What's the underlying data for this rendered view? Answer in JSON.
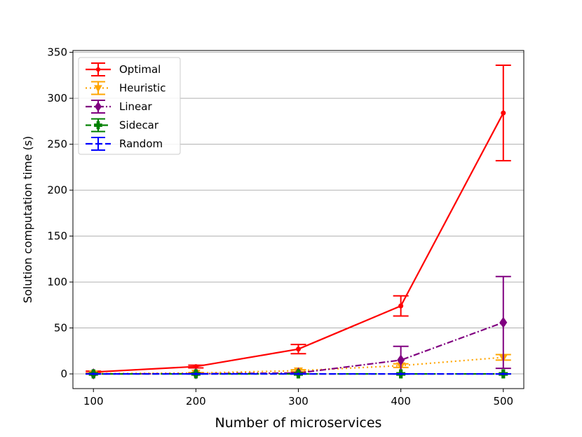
{
  "chart_data": {
    "type": "line",
    "xlabel": "Number of microservices",
    "ylabel": "Solution computation time (s)",
    "x": [
      100,
      200,
      300,
      400,
      500
    ],
    "xlim": [
      80,
      520
    ],
    "ylim": [
      -16,
      352
    ],
    "xticks": [
      100,
      200,
      300,
      400,
      500
    ],
    "yticks": [
      0,
      50,
      100,
      150,
      200,
      250,
      300,
      350
    ],
    "grid": "horizontal",
    "legend_position": "top-left",
    "series": [
      {
        "name": "Optimal",
        "color": "#ff0000",
        "dash": "solid",
        "marker": "dot",
        "values": [
          2,
          8,
          27,
          74,
          284
        ],
        "errors": [
          1,
          1.5,
          5,
          11,
          52
        ]
      },
      {
        "name": "Heuristic",
        "color": "#ffa500",
        "dash": "dotted",
        "marker": "triangle-down",
        "values": [
          0.3,
          1,
          3.5,
          9,
          18
        ],
        "errors": [
          0.2,
          0.5,
          1,
          2,
          3
        ]
      },
      {
        "name": "Linear",
        "color": "#800080",
        "dash": "dashdot",
        "marker": "diamond",
        "values": [
          0,
          0.2,
          1,
          15,
          56
        ],
        "errors": [
          0.1,
          0.2,
          0.5,
          15,
          50
        ]
      },
      {
        "name": "Sidecar",
        "color": "#008000",
        "dash": "dashed",
        "marker": "plus",
        "values": [
          0,
          0,
          0,
          0,
          0
        ],
        "errors": [
          0.05,
          0.05,
          0.05,
          0.05,
          0.05
        ]
      },
      {
        "name": "Random",
        "color": "#0000ff",
        "dash": "longdash",
        "marker": "point",
        "values": [
          0,
          0,
          0,
          0,
          0
        ],
        "errors": [
          0.05,
          0.05,
          0.05,
          0.05,
          0.05
        ]
      }
    ]
  }
}
